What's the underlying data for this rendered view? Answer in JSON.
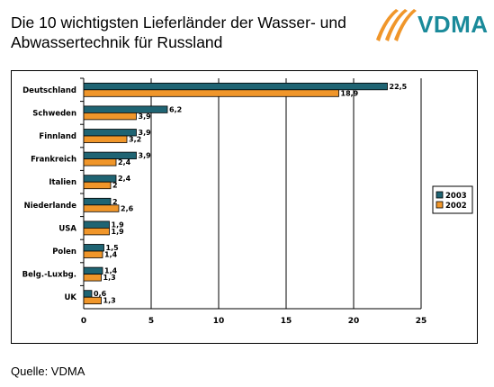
{
  "header": {
    "title_line1": "Die 10 wichtigsten Lieferländer der Wasser- und",
    "title_line2": "Abwassertechnik für Russland",
    "logo_text": "VDMA"
  },
  "footer": {
    "source": "Quelle: VDMA"
  },
  "colors": {
    "series_2003": "#1f6473",
    "series_2002": "#f0962a",
    "logo": "#1a8a9a"
  },
  "chart_data": {
    "type": "bar",
    "orientation": "horizontal",
    "categories": [
      "Deutschland",
      "Schweden",
      "Finnland",
      "Frankreich",
      "Italien",
      "Niederlande",
      "USA",
      "Polen",
      "Belg.-Luxbg.",
      "UK"
    ],
    "series": [
      {
        "name": "2003",
        "values": [
          22.5,
          6.2,
          3.9,
          3.9,
          2.4,
          2,
          1.9,
          1.5,
          1.4,
          0.6
        ],
        "labels": [
          "22,5",
          "6,2",
          "3,9",
          "3,9",
          "2,4",
          "2",
          "1,9",
          "1,5",
          "1,4",
          "0,6"
        ]
      },
      {
        "name": "2002",
        "values": [
          18.9,
          3.9,
          3.2,
          2.4,
          2,
          2.6,
          1.9,
          1.4,
          1.3,
          1.3
        ],
        "labels": [
          "18,9",
          "3,9",
          "3,2",
          "2,4",
          "2",
          "2,6",
          "1,9",
          "1,4",
          "1,3",
          "1,3"
        ]
      }
    ],
    "xlim": [
      0,
      25
    ],
    "xticks": [
      "0",
      "5",
      "10",
      "15",
      "20",
      "25"
    ],
    "grid": true,
    "legend": "right"
  }
}
